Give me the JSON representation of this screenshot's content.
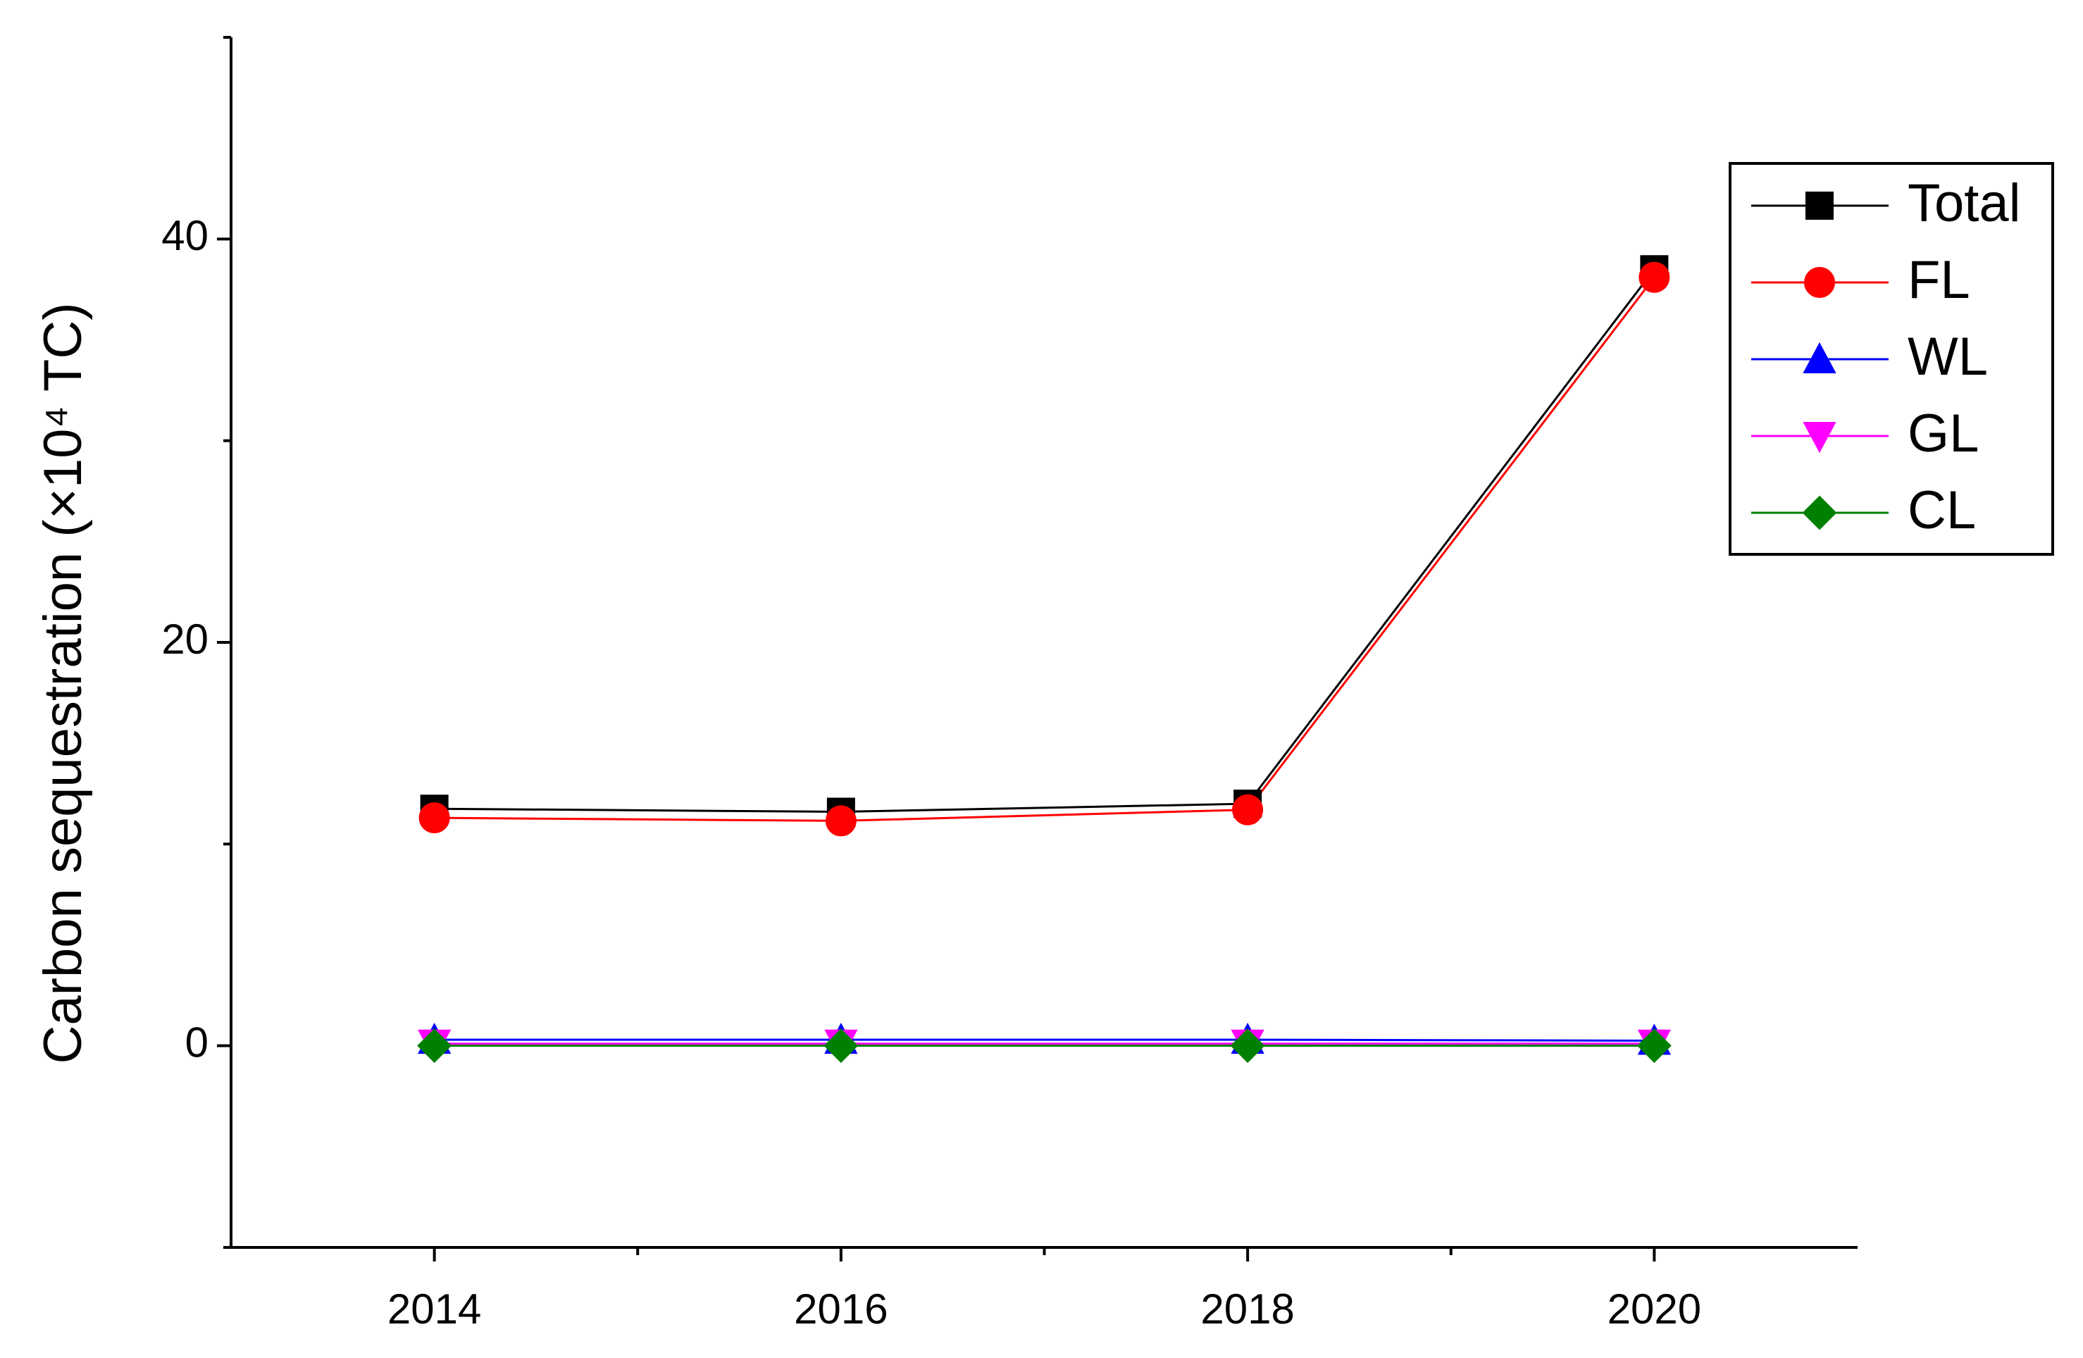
{
  "chart_data": {
    "type": "line",
    "y_label": "Carbon sequestration (×10⁴ TC)",
    "x": [
      2014,
      2016,
      2018,
      2020
    ],
    "xlim": [
      2013,
      2021
    ],
    "xticks": [
      2014,
      2016,
      2018,
      2020
    ],
    "xminorticks": [
      2015,
      2017,
      2019
    ],
    "ylim": [
      -10,
      50
    ],
    "yticks": [
      0,
      20,
      40
    ],
    "yminorticks": [
      -10,
      10,
      30,
      50
    ],
    "legend": "upper right",
    "series": [
      {
        "name": "Total",
        "color": "#000000",
        "marker": "square",
        "values": [
          11.75,
          11.6,
          12.0,
          38.5
        ]
      },
      {
        "name": "FL",
        "color": "#ff0000",
        "marker": "circle",
        "values": [
          11.3,
          11.15,
          11.7,
          38.1
        ]
      },
      {
        "name": "WL",
        "color": "#0000ff",
        "marker": "triangle-up",
        "values": [
          0.3,
          0.3,
          0.3,
          0.25
        ]
      },
      {
        "name": "GL",
        "color": "#ff00ff",
        "marker": "triangle-down",
        "values": [
          0.1,
          0.1,
          0.1,
          0.1
        ]
      },
      {
        "name": "CL",
        "color": "#008000",
        "marker": "diamond",
        "values": [
          0,
          0,
          0,
          0
        ]
      }
    ]
  }
}
